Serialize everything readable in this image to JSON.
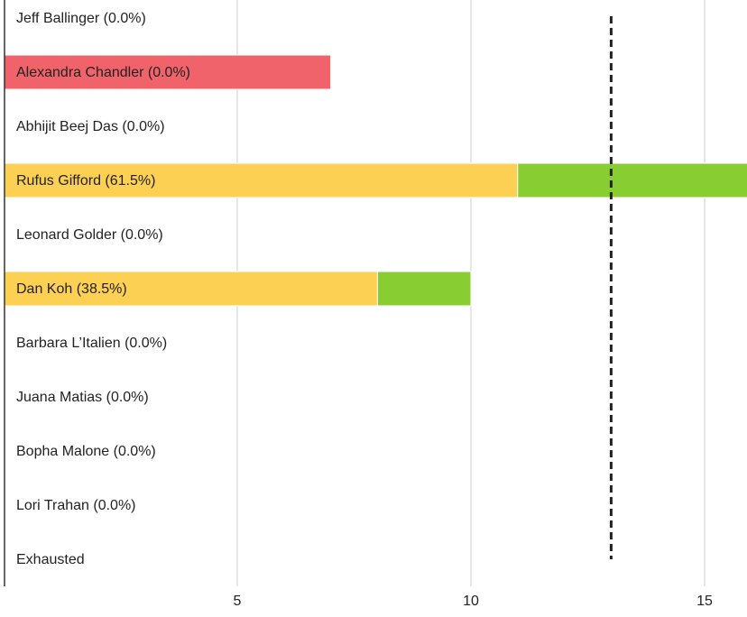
{
  "chart_data": {
    "type": "stacked_barh",
    "categories": [
      "Jeff Ballinger (0.0%)",
      "Alexandra Chandler (0.0%)",
      "Abhijit Beej Das (0.0%)",
      "Rufus Gifford (61.5%)",
      "Leonard Golder (0.0%)",
      "Dan Koh (38.5%)",
      "Barbara L’Italien (0.0%)",
      "Juana Matias (0.0%)",
      "Bopha Malone (0.0%)",
      "Lori Trahan (0.0%)",
      "Exhausted"
    ],
    "series": [
      {
        "colors": [
          "#fcd052",
          "#f0636a",
          "#fcd052",
          "#fcd052",
          "#fcd052",
          "#fcd052",
          "#fcd052",
          "#fcd052",
          "#fcd052",
          "#fcd052",
          "#fcd052"
        ],
        "values": [
          0,
          7,
          0,
          11,
          0,
          8,
          0,
          0,
          0,
          0,
          0
        ]
      },
      {
        "color": "#88cd32",
        "values": [
          0,
          0,
          0,
          5,
          0,
          2,
          0,
          0,
          0,
          0,
          0
        ]
      }
    ],
    "threshold": 13,
    "xlim": [
      0,
      16
    ],
    "xticks": [
      5,
      10,
      15
    ],
    "grid": true
  }
}
